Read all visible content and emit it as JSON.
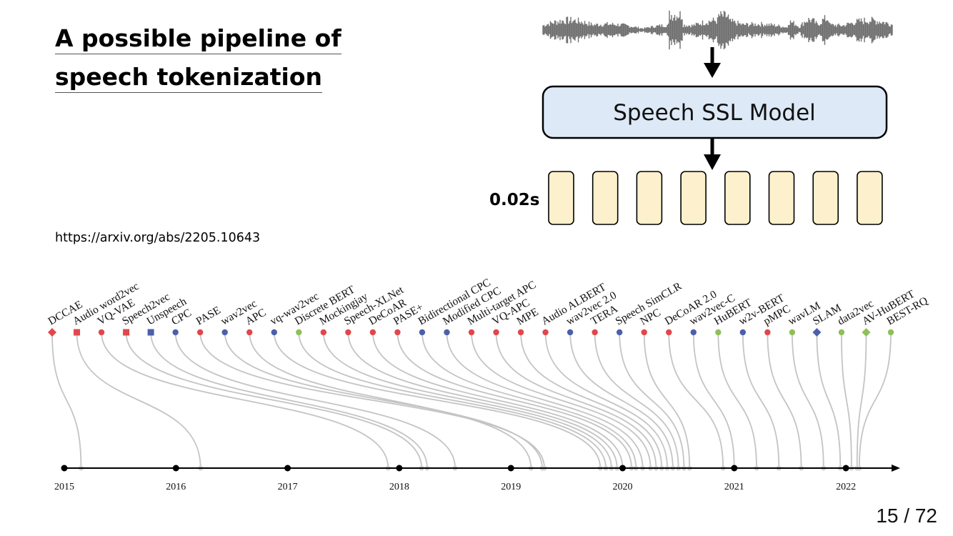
{
  "slide": {
    "title_line_1": "A possible pipeline of",
    "title_line_2": "speech tokenization",
    "reference_url": "https://arxiv.org/abs/2205.10643",
    "page_number": "15 / 72"
  },
  "pipeline": {
    "model_label": "Speech SSL Model",
    "frame_duration_label": "0.02s",
    "token_count": 8,
    "colors": {
      "model_box_fill": "#dde9f6",
      "token_fill": "#fdf0cc",
      "waveform": "#6e6e6e"
    }
  },
  "timeline": {
    "years": [
      "2015",
      "2016",
      "2017",
      "2018",
      "2019",
      "2020",
      "2021",
      "2022"
    ],
    "models": [
      {
        "name": "DCCAE",
        "color": "#e0474c",
        "shape": "diamond",
        "date": 2015.15
      },
      {
        "name": "Audio word2vec",
        "color": "#e0474c",
        "shape": "square",
        "date": 2016.22
      },
      {
        "name": "VQ-VAE",
        "color": "#e0474c",
        "shape": "circle",
        "date": 2017.9
      },
      {
        "name": "Speech2vec",
        "color": "#e0474c",
        "shape": "square",
        "date": 2018.2
      },
      {
        "name": "Unspeech",
        "color": "#4c5faa",
        "shape": "square",
        "date": 2018.25
      },
      {
        "name": "CPC",
        "color": "#4c5faa",
        "shape": "circle",
        "date": 2018.5
      },
      {
        "name": "PASE",
        "color": "#e0474c",
        "shape": "circle",
        "date": 2019.3
      },
      {
        "name": "wav2vec",
        "color": "#4c5faa",
        "shape": "circle",
        "date": 2019.28
      },
      {
        "name": "APC",
        "color": "#e0474c",
        "shape": "circle",
        "date": 2019.18
      },
      {
        "name": "vq-wav2vec",
        "color": "#4c5faa",
        "shape": "circle",
        "date": 2019.8
      },
      {
        "name": "Discrete BERT",
        "color": "#8fbf5a",
        "shape": "circle",
        "date": 2019.85
      },
      {
        "name": "Mockingjay",
        "color": "#e0474c",
        "shape": "circle",
        "date": 2019.9
      },
      {
        "name": "Speech-XLNet",
        "color": "#e0474c",
        "shape": "circle",
        "date": 2019.95
      },
      {
        "name": "DeCoAR",
        "color": "#e0474c",
        "shape": "circle",
        "date": 2020.0
      },
      {
        "name": "PASE+",
        "color": "#e0474c",
        "shape": "circle",
        "date": 2020.08
      },
      {
        "name": "Bidirectional CPC",
        "color": "#4c5faa",
        "shape": "circle",
        "date": 2020.12
      },
      {
        "name": "Modified CPC",
        "color": "#4c5faa",
        "shape": "circle",
        "date": 2020.18
      },
      {
        "name": "Multi-target APC",
        "color": "#e0474c",
        "shape": "circle",
        "date": 2020.25
      },
      {
        "name": "VQ-APC",
        "color": "#e0474c",
        "shape": "circle",
        "date": 2020.3
      },
      {
        "name": "MPE",
        "color": "#e0474c",
        "shape": "circle",
        "date": 2020.35
      },
      {
        "name": "Audio ALBERT",
        "color": "#e0474c",
        "shape": "circle",
        "date": 2020.4
      },
      {
        "name": "wav2vec 2.0",
        "color": "#4c5faa",
        "shape": "circle",
        "date": 2020.45
      },
      {
        "name": "TERA",
        "color": "#e0474c",
        "shape": "circle",
        "date": 2020.5
      },
      {
        "name": "Speech SimCLR",
        "color": "#4c5faa",
        "shape": "circle",
        "date": 2020.55
      },
      {
        "name": "NPC",
        "color": "#e0474c",
        "shape": "circle",
        "date": 2020.6
      },
      {
        "name": "DeCoAR 2.0",
        "color": "#e0474c",
        "shape": "circle",
        "date": 2020.9
      },
      {
        "name": "wav2vec-C",
        "color": "#4c5faa",
        "shape": "circle",
        "date": 2021.0
      },
      {
        "name": "HuBERT",
        "color": "#8fbf5a",
        "shape": "circle",
        "date": 2021.2
      },
      {
        "name": "w2v-BERT",
        "color": "#4c5faa",
        "shape": "circle",
        "date": 2021.4
      },
      {
        "name": "pMPC",
        "color": "#e0474c",
        "shape": "circle",
        "date": 2021.6
      },
      {
        "name": "wavLM",
        "color": "#8fbf5a",
        "shape": "circle",
        "date": 2021.8
      },
      {
        "name": "SLAM",
        "color": "#4c5faa",
        "shape": "diamond",
        "date": 2021.95
      },
      {
        "name": "data2vec",
        "color": "#8fbf5a",
        "shape": "circle",
        "date": 2022.05
      },
      {
        "name": "AV-HuBERT",
        "color": "#8fbf5a",
        "shape": "diamond",
        "date": 2022.1
      },
      {
        "name": "BEST-RQ",
        "color": "#8fbf5a",
        "shape": "circle",
        "date": 2022.12
      }
    ]
  }
}
